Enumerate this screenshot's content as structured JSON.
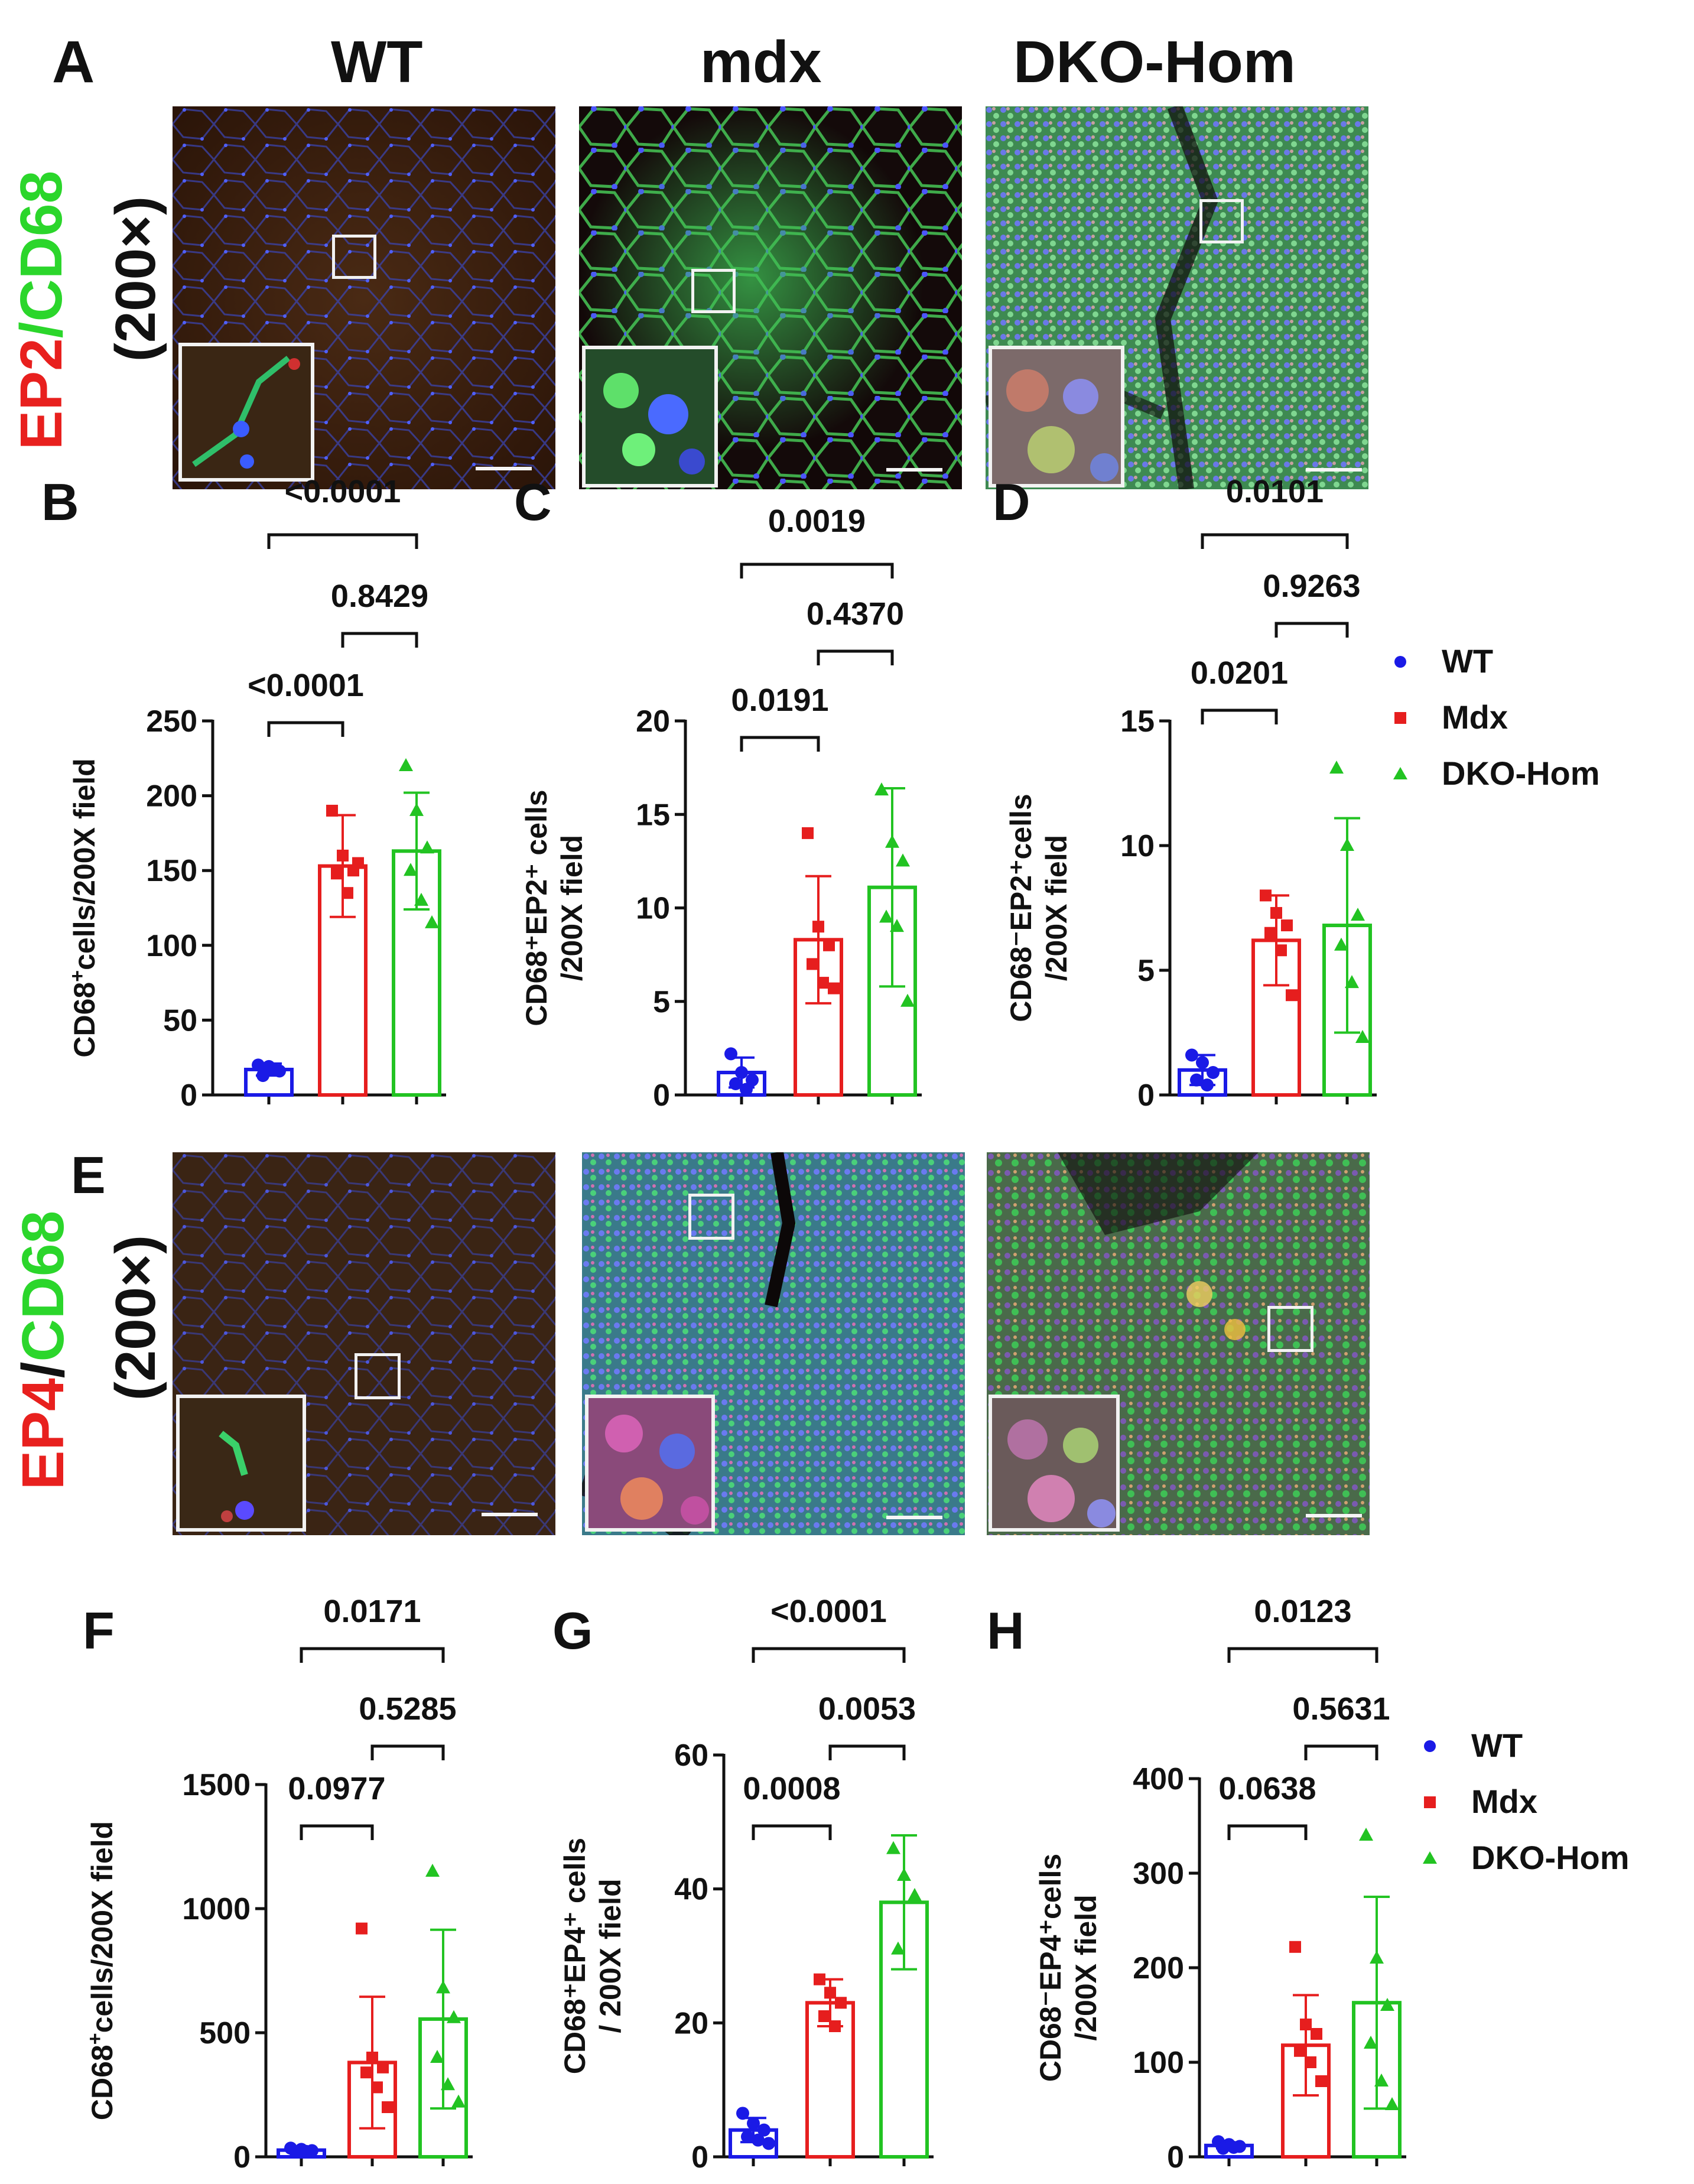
{
  "headers": {
    "panel_a": "A",
    "wt": "WT",
    "mdx": "mdx",
    "dko": "DKO-Hom"
  },
  "stain_top": {
    "ep": "EP2",
    "slash": "/",
    "cd": "CD68",
    "mag": "(200×)"
  },
  "stain_bottom": {
    "panel_e": "E",
    "ep": "EP4",
    "slash": "/",
    "cd": "CD68",
    "mag": "(200×)"
  },
  "colors": {
    "wt": "#1a1ae6",
    "mdx": "#e61e1e",
    "dko": "#22c322",
    "ep_red": "#e8201e",
    "cd_green": "#2bd62b"
  },
  "legend": [
    {
      "label": "WT",
      "marker": "circle",
      "color": "#1a1ae6"
    },
    {
      "label": "Mdx",
      "marker": "square",
      "color": "#e61e1e"
    },
    {
      "label": "DKO-Hom",
      "marker": "triangle",
      "color": "#22c322"
    }
  ],
  "chart_data": [
    {
      "panel": "B",
      "type": "bar",
      "ylabel_main": "CD68",
      "ylabel_sup": "+",
      "ylabel_rest": "cells/200X field",
      "ylim": [
        0,
        250
      ],
      "yticks": [
        "0",
        "50",
        "100",
        "150",
        "200",
        "250"
      ],
      "groups": [
        "WT",
        "Mdx",
        "DKO-Hom"
      ],
      "means": [
        17,
        153,
        163
      ],
      "sd": [
        4,
        34,
        39
      ],
      "points": [
        [
          20,
          19,
          16,
          13,
          17
        ],
        [
          190,
          160,
          150,
          148,
          135,
          155
        ],
        [
          220,
          190,
          165,
          150,
          130,
          115
        ]
      ],
      "comparisons": [
        {
          "label": "<0.0001",
          "from": 0,
          "to": 1
        },
        {
          "label": "0.8429",
          "from": 1,
          "to": 2
        },
        {
          "label": "<0.0001",
          "from": 0,
          "to": 2
        }
      ]
    },
    {
      "panel": "C",
      "type": "bar",
      "ylabel_line1": "CD68⁺EP2⁺ cells",
      "ylabel_line2": "/200X field",
      "ylim": [
        0,
        20
      ],
      "yticks": [
        "0",
        "5",
        "10",
        "15",
        "20"
      ],
      "groups": [
        "WT",
        "Mdx",
        "DKO-Hom"
      ],
      "means": [
        1.2,
        8.3,
        11.1
      ],
      "sd": [
        0.8,
        3.4,
        5.3
      ],
      "points": [
        [
          2.2,
          1.2,
          0.8,
          0.6,
          0.3
        ],
        [
          14.0,
          9.0,
          8.0,
          7.0,
          6.0,
          5.7
        ],
        [
          16.3,
          13.5,
          12.5,
          9.5,
          9.0,
          5.0
        ]
      ],
      "comparisons": [
        {
          "label": "0.0191",
          "from": 0,
          "to": 1
        },
        {
          "label": "0.4370",
          "from": 1,
          "to": 2
        },
        {
          "label": "0.0019",
          "from": 0,
          "to": 2
        }
      ]
    },
    {
      "panel": "D",
      "type": "bar",
      "ylabel_line1": "CD68⁻EP2⁺cells",
      "ylabel_line2": "/200X field",
      "ylim": [
        0,
        15
      ],
      "yticks": [
        "0",
        "5",
        "10",
        "15"
      ],
      "groups": [
        "WT",
        "Mdx",
        "DKO-Hom"
      ],
      "means": [
        1.0,
        6.2,
        6.8
      ],
      "sd": [
        0.6,
        1.8,
        4.3
      ],
      "points": [
        [
          1.6,
          1.3,
          0.9,
          0.6,
          0.4
        ],
        [
          8.0,
          7.3,
          6.8,
          6.5,
          5.8,
          4.0
        ],
        [
          13.1,
          10.0,
          7.2,
          6.0,
          4.5,
          2.3
        ]
      ],
      "comparisons": [
        {
          "label": "0.0201",
          "from": 0,
          "to": 1
        },
        {
          "label": "0.9263",
          "from": 1,
          "to": 2
        },
        {
          "label": "0.0101",
          "from": 0,
          "to": 2
        }
      ]
    },
    {
      "panel": "F",
      "type": "bar",
      "ylabel_main": "CD68",
      "ylabel_sup": "+",
      "ylabel_rest": "cells/200X field",
      "ylim": [
        0,
        1500
      ],
      "yticks": [
        "0",
        "500",
        "1000",
        "1500"
      ],
      "groups": [
        "WT",
        "Mdx",
        "DKO-Hom"
      ],
      "means": [
        27,
        380,
        555
      ],
      "sd": [
        10,
        265,
        360
      ],
      "points": [
        [
          35,
          30,
          25,
          20,
          22
        ],
        [
          920,
          400,
          360,
          340,
          280,
          200
        ],
        [
          1150,
          680,
          560,
          400,
          290,
          220
        ]
      ],
      "comparisons": [
        {
          "label": "0.0977",
          "from": 0,
          "to": 1
        },
        {
          "label": "0.5285",
          "from": 1,
          "to": 2
        },
        {
          "label": "0.0171",
          "from": 0,
          "to": 2
        }
      ]
    },
    {
      "panel": "G",
      "type": "bar",
      "ylabel_line1": "CD68⁺EP4⁺ cells",
      "ylabel_line2": "/ 200X field",
      "ylim": [
        0,
        60
      ],
      "yticks": [
        "0",
        "20",
        "40",
        "60"
      ],
      "groups": [
        "WT",
        "Mdx",
        "DKO-Hom"
      ],
      "means": [
        4,
        23,
        38
      ],
      "sd": [
        1.8,
        3.5,
        10
      ],
      "points": [
        [
          6.5,
          5.0,
          4.0,
          3.0,
          2.5,
          2.0
        ],
        [
          26.5,
          24.5,
          23.0,
          21.0,
          19.5
        ],
        [
          46.0,
          42.0,
          39.0,
          31.0
        ]
      ],
      "comparisons": [
        {
          "label": "0.0008",
          "from": 0,
          "to": 1
        },
        {
          "label": "0.0053",
          "from": 1,
          "to": 2
        },
        {
          "label": "<0.0001",
          "from": 0,
          "to": 2
        }
      ]
    },
    {
      "panel": "H",
      "type": "bar",
      "ylabel_line1": "CD68⁻EP4⁺cells",
      "ylabel_line2": "/200X field",
      "ylim": [
        0,
        400
      ],
      "yticks": [
        "0",
        "100",
        "200",
        "300",
        "400"
      ],
      "groups": [
        "WT",
        "Mdx",
        "DKO-Hom"
      ],
      "means": [
        12,
        118,
        163
      ],
      "sd": [
        3,
        53,
        112
      ],
      "points": [
        [
          16,
          13,
          11,
          9,
          10
        ],
        [
          222,
          140,
          130,
          112,
          100,
          80
        ],
        [
          340,
          210,
          160,
          120,
          80,
          55
        ]
      ],
      "comparisons": [
        {
          "label": "0.0638",
          "from": 0,
          "to": 1
        },
        {
          "label": "0.5631",
          "from": 1,
          "to": 2
        },
        {
          "label": "0.0123",
          "from": 0,
          "to": 2
        }
      ]
    }
  ]
}
